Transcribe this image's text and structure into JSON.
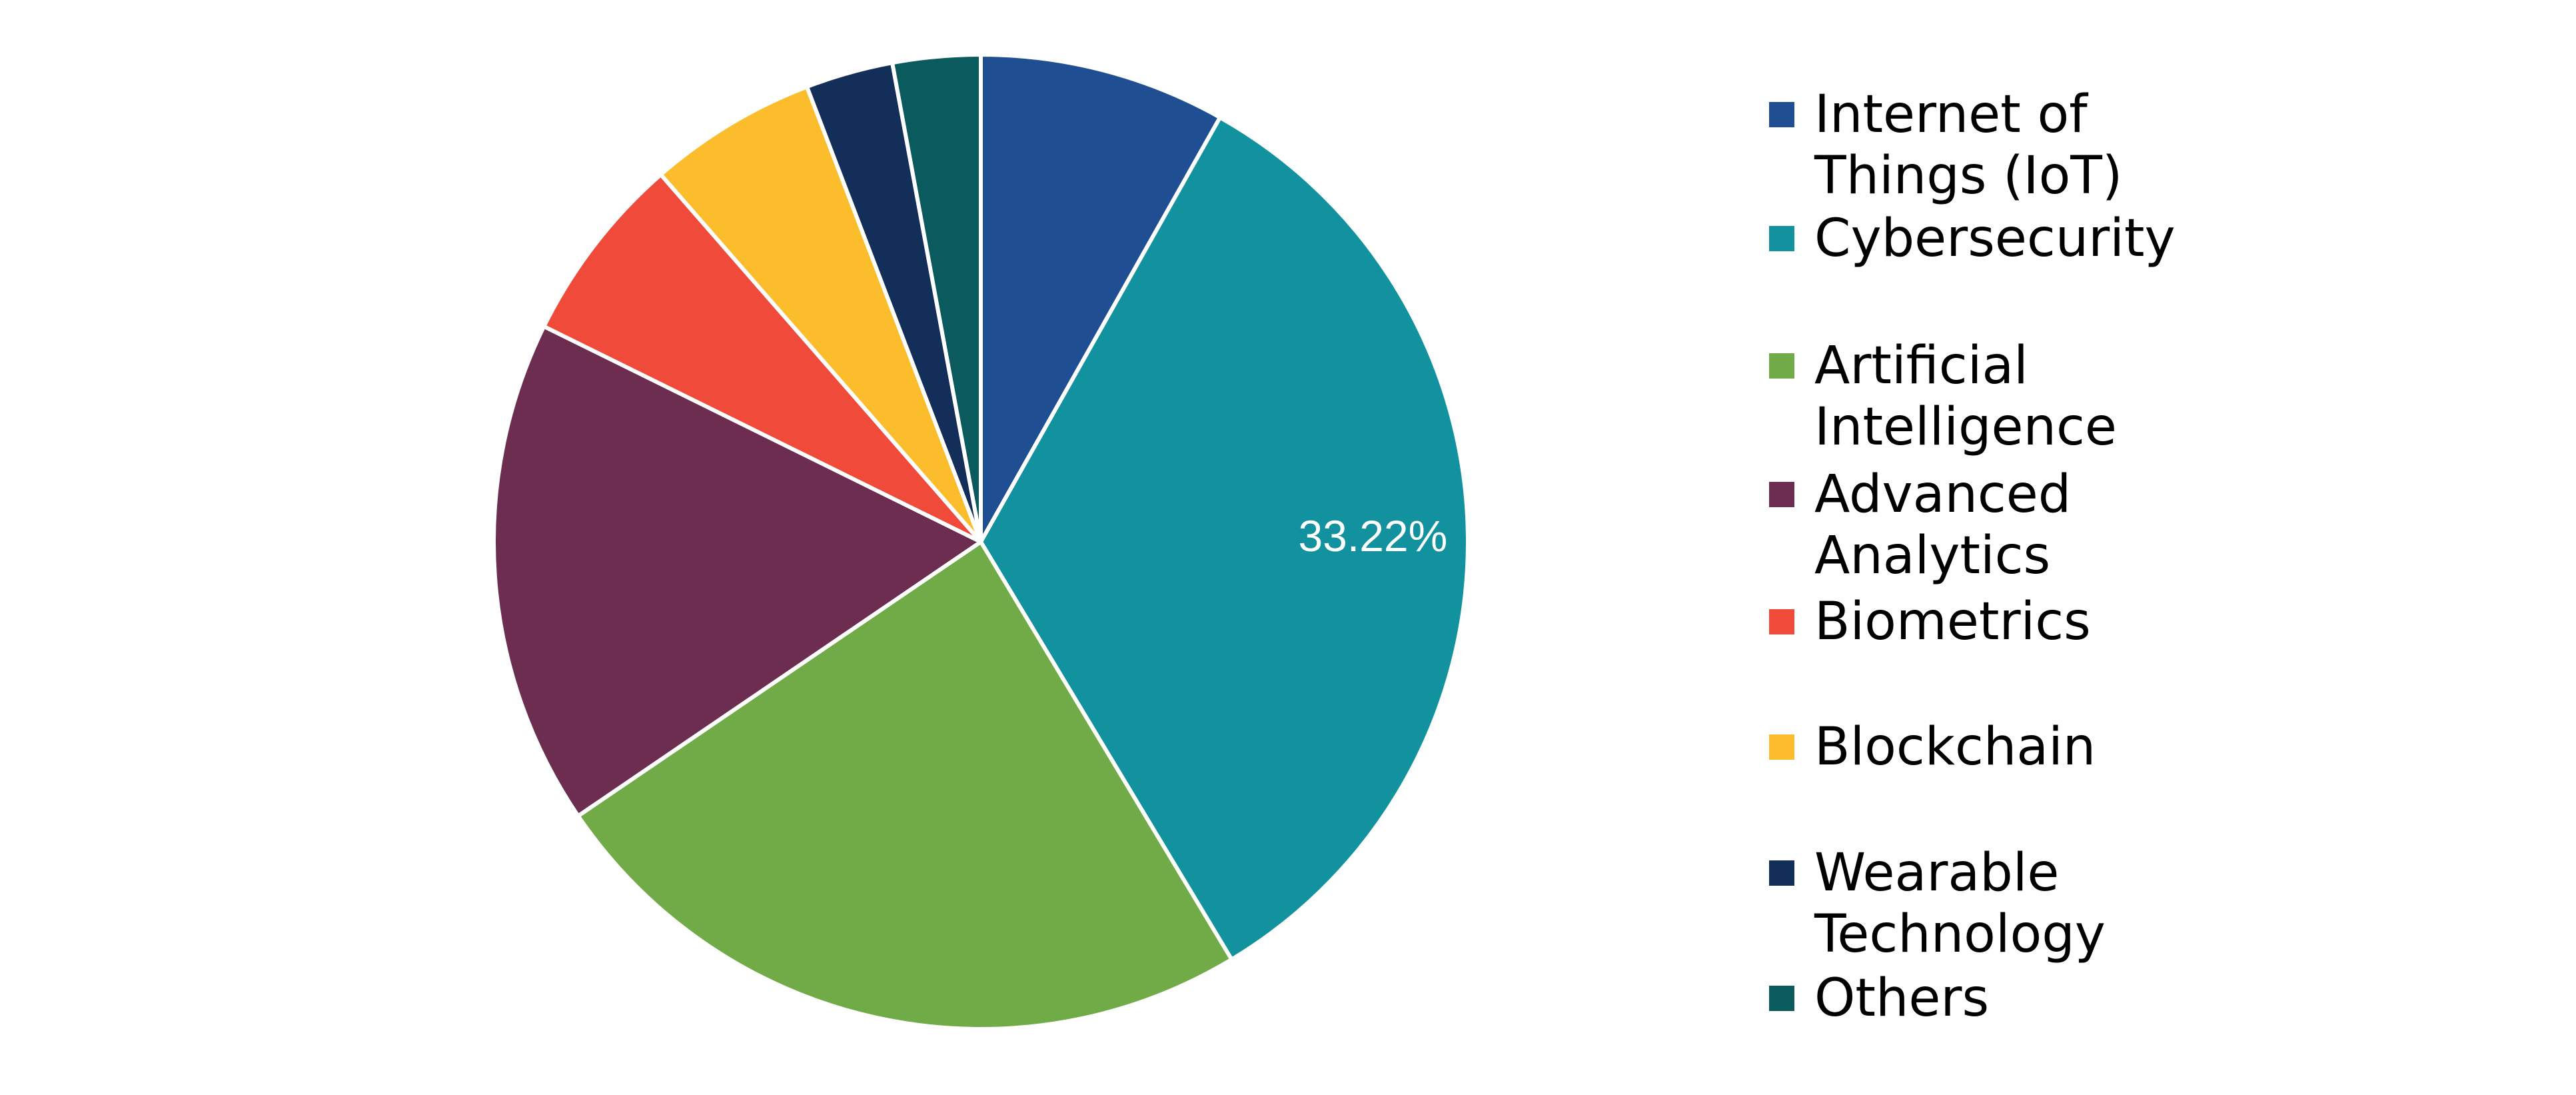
{
  "chart_data": {
    "type": "pie",
    "title": "",
    "start_angle": "top, clockwise",
    "legend_position": "right",
    "slices": [
      {
        "label": "Internet of Things (IoT)",
        "value": 8.17,
        "color": "#1f4e93"
      },
      {
        "label": "Cybersecurity",
        "value": 33.22,
        "color": "#12929e",
        "data_label": "33.22%"
      },
      {
        "label": "Artificial Intelligence",
        "value": 24.1,
        "color": "#70ab48"
      },
      {
        "label": "Advanced Analytics",
        "value": 16.8,
        "color": "#6d2d50"
      },
      {
        "label": "Biometrics",
        "value": 6.3,
        "color": "#f04a3a"
      },
      {
        "label": "Blockchain",
        "value": 5.6,
        "color": "#fcbd2c"
      },
      {
        "label": "Wearable Technology",
        "value": 2.9,
        "color": "#132e58"
      },
      {
        "label": "Others",
        "value": 2.91,
        "color": "#0b5a5e"
      }
    ]
  }
}
